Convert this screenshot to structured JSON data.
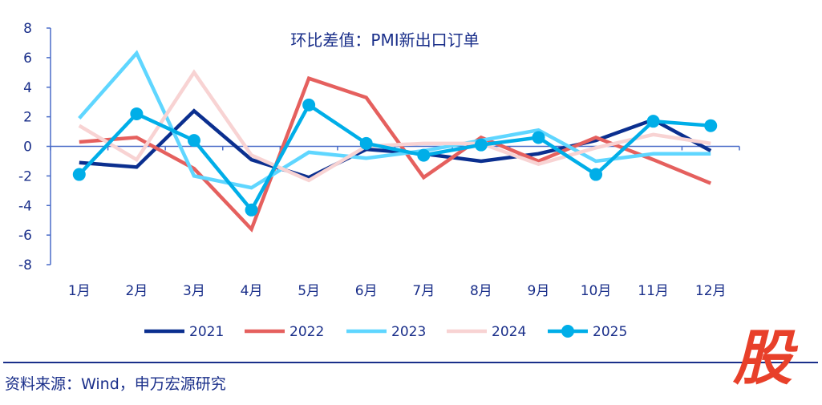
{
  "chart_data": {
    "type": "line",
    "title": "环比差值：PMI新出口订单",
    "categories": [
      "1月",
      "2月",
      "3月",
      "4月",
      "5月",
      "6月",
      "7月",
      "8月",
      "9月",
      "10月",
      "11月",
      "12月"
    ],
    "ylim": [
      -8,
      8
    ],
    "yticks": [
      8,
      6,
      4,
      2,
      0,
      -2,
      -4,
      -6,
      -8
    ],
    "grid": false,
    "legend_position": "bottom",
    "series": [
      {
        "name": "2021",
        "color": "#0b2f8f",
        "markers": false,
        "values": [
          -1.1,
          -1.4,
          2.4,
          -0.9,
          -2.1,
          -0.2,
          -0.5,
          -1.0,
          -0.5,
          0.4,
          1.8,
          -0.3
        ]
      },
      {
        "name": "2022",
        "color": "#e5605e",
        "markers": false,
        "values": [
          0.3,
          0.6,
          -1.5,
          -5.6,
          4.6,
          3.3,
          -2.1,
          0.6,
          -1.0,
          0.6,
          -0.9,
          -2.5
        ]
      },
      {
        "name": "2023",
        "color": "#5fd6ff",
        "markers": false,
        "values": [
          1.9,
          6.3,
          -2.0,
          -2.8,
          -0.4,
          -0.8,
          -0.3,
          0.4,
          1.1,
          -1.0,
          -0.5,
          -0.5
        ]
      },
      {
        "name": "2024",
        "color": "#f8d3d3",
        "markers": false,
        "values": [
          1.4,
          -0.9,
          5.0,
          -0.6,
          -2.3,
          0.0,
          0.2,
          0.2,
          -1.2,
          -0.1,
          0.8,
          0.2
        ]
      },
      {
        "name": "2025",
        "color": "#00aee8",
        "markers": true,
        "values": [
          -1.9,
          2.2,
          0.4,
          -4.3,
          2.8,
          0.2,
          -0.6,
          0.1,
          0.6,
          -1.9,
          1.7,
          1.4
        ]
      }
    ]
  },
  "source": "资料来源：Wind，申万宏源研究",
  "logo": "股",
  "axis_color": "#4a6cc8",
  "text_color": "#1a2f8a"
}
